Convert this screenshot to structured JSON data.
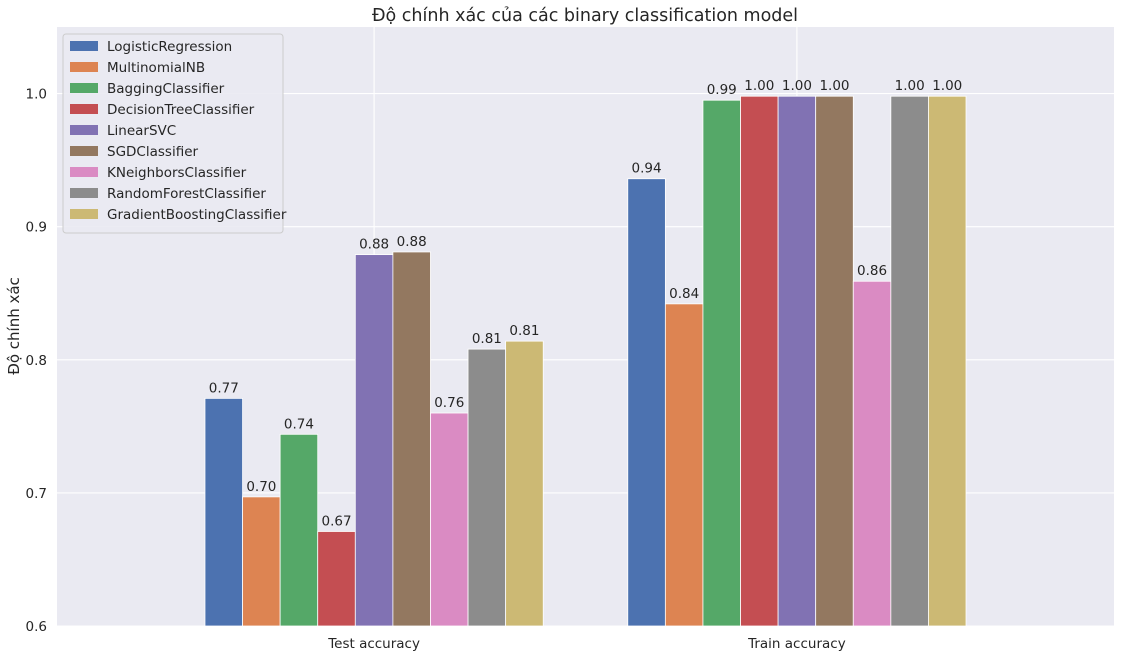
{
  "chart_data": {
    "type": "bar",
    "title": "Độ chính xác của các binary classification model",
    "xlabel": "",
    "ylabel": "Độ chính xác",
    "ylim": [
      0.6,
      1.05
    ],
    "yticks": [
      0.6,
      0.7,
      0.8,
      0.9,
      1.0
    ],
    "ytick_labels": [
      "0.6",
      "0.7",
      "0.8",
      "0.9",
      "1.0"
    ],
    "categories": [
      "Test accuracy",
      "Train accuracy"
    ],
    "grid": true,
    "legend_position": "top-left",
    "background": "#eaeaf2",
    "series": [
      {
        "name": "LogisticRegression",
        "color": "#4c72b0",
        "values": [
          0.771,
          0.936
        ],
        "labels": [
          "0.77",
          "0.94"
        ]
      },
      {
        "name": "MultinomialNB",
        "color": "#dd8452",
        "values": [
          0.697,
          0.842
        ],
        "labels": [
          "0.70",
          "0.84"
        ]
      },
      {
        "name": "BaggingClassifier",
        "color": "#55a868",
        "values": [
          0.744,
          0.995
        ],
        "labels": [
          "0.74",
          "0.99"
        ]
      },
      {
        "name": "DecisionTreeClassifier",
        "color": "#c44e52",
        "values": [
          0.671,
          0.998
        ],
        "labels": [
          "0.67",
          "1.00"
        ]
      },
      {
        "name": "LinearSVC",
        "color": "#8172b3",
        "values": [
          0.879,
          0.998
        ],
        "labels": [
          "0.88",
          "1.00"
        ]
      },
      {
        "name": "SGDClassifier",
        "color": "#937860",
        "values": [
          0.881,
          0.998
        ],
        "labels": [
          "0.88",
          "1.00"
        ]
      },
      {
        "name": "KNeighborsClassifier",
        "color": "#da8bc3",
        "values": [
          0.76,
          0.859
        ],
        "labels": [
          "0.76",
          "0.86"
        ]
      },
      {
        "name": "RandomForestClassifier",
        "color": "#8c8c8c",
        "values": [
          0.808,
          0.998
        ],
        "labels": [
          "0.81",
          "1.00"
        ]
      },
      {
        "name": "GradientBoostingClassifier",
        "color": "#ccb974",
        "values": [
          0.814,
          0.998
        ],
        "labels": [
          "0.81",
          "1.00"
        ]
      }
    ]
  }
}
